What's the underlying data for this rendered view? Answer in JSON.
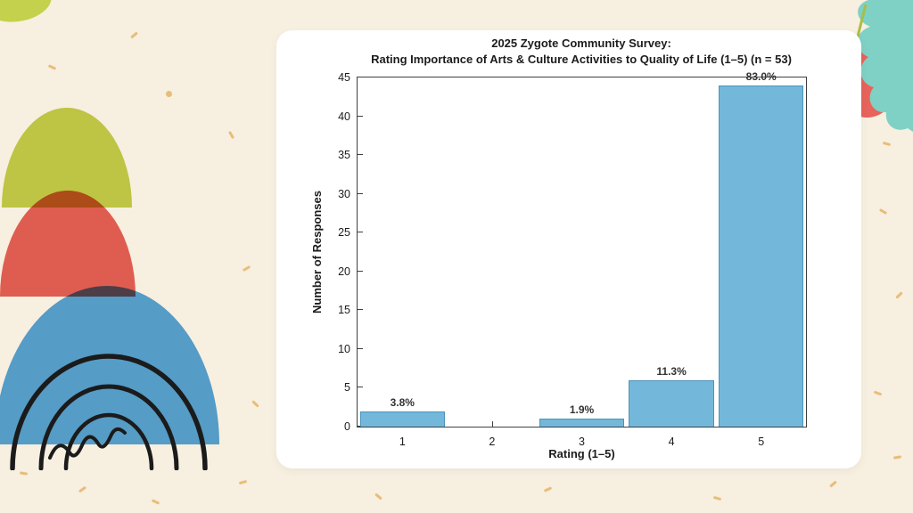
{
  "colors": {
    "background": "#f7efe0",
    "card": "#ffffff",
    "axis": "#3f3f3f",
    "text": "#1c1c1c",
    "deco_green": "#c4d14c",
    "deco_red": "#e7635b",
    "deco_blue": "#58a7e2",
    "deco_teal": "#7fd1c5",
    "deco_olive": "#a9bd4a",
    "deco_black": "#1b1b1b",
    "speckle": "#e2a240"
  },
  "chart_data": {
    "type": "bar",
    "title_line1": "2025 Zygote Community Survey:",
    "title_line2": "Rating Importance of Arts & Culture Activities to Quality of Life (1–5) (n = 53)",
    "xlabel": "Rating (1–5)",
    "ylabel": "Number of Responses",
    "categories": [
      "1",
      "2",
      "3",
      "4",
      "5"
    ],
    "values": [
      2,
      0,
      1,
      6,
      44
    ],
    "bar_labels": [
      "3.8%",
      "",
      "1.9%",
      "11.3%",
      "83.0%"
    ],
    "sample_size": 53,
    "ylim": [
      0,
      45
    ],
    "yticks": [
      0,
      5,
      10,
      15,
      20,
      25,
      30,
      35,
      40,
      45
    ],
    "bar_color": "#73b8da",
    "bar_edge_color": "#4c94ba",
    "bar_width_ratio": 0.95,
    "grid": false,
    "legend": null
  }
}
